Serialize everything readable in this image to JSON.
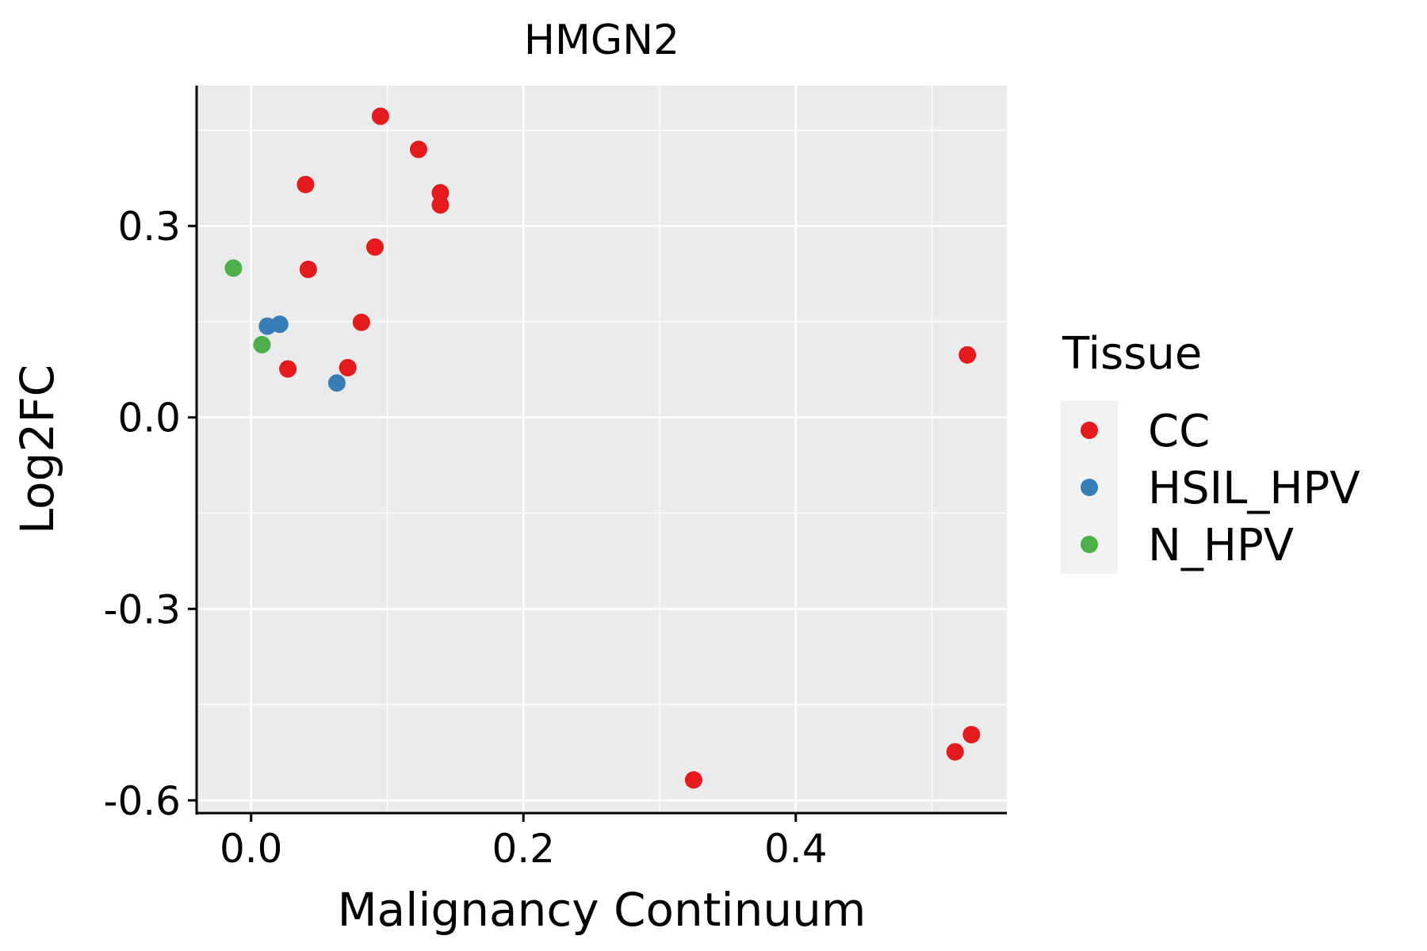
{
  "chart_data": {
    "type": "scatter",
    "title": "HMGN2",
    "xlabel": "Malignancy Continuum",
    "ylabel": "Log2FC",
    "xlim": [
      -0.04,
      0.555
    ],
    "ylim": [
      -0.62,
      0.52
    ],
    "x_ticks": [
      0.0,
      0.2,
      0.4
    ],
    "x_tick_labels": [
      "0.0",
      "0.2",
      "0.4"
    ],
    "x_minor": [
      -0.1,
      0.1,
      0.3,
      0.5
    ],
    "y_ticks": [
      -0.6,
      -0.3,
      0.0,
      0.3
    ],
    "y_tick_labels": [
      "-0.6",
      "-0.3",
      "0.0",
      "0.3"
    ],
    "y_minor": [
      -0.45,
      -0.15,
      0.15,
      0.45
    ],
    "grid": true,
    "panel_background": "#ebebeb",
    "legend": {
      "title": "Tissue",
      "position": "right",
      "entries": [
        {
          "name": "CC",
          "color": "#e41a1c"
        },
        {
          "name": "HSIL_HPV",
          "color": "#377eb8"
        },
        {
          "name": "N_HPV",
          "color": "#4daf4a"
        }
      ]
    },
    "series": [
      {
        "name": "CC",
        "color": "#e41a1c",
        "points": [
          {
            "x": 0.095,
            "y": 0.472
          },
          {
            "x": 0.123,
            "y": 0.42
          },
          {
            "x": 0.04,
            "y": 0.365
          },
          {
            "x": 0.139,
            "y": 0.352
          },
          {
            "x": 0.139,
            "y": 0.333
          },
          {
            "x": 0.091,
            "y": 0.267
          },
          {
            "x": 0.042,
            "y": 0.232
          },
          {
            "x": 0.081,
            "y": 0.149
          },
          {
            "x": 0.027,
            "y": 0.076
          },
          {
            "x": 0.071,
            "y": 0.078
          },
          {
            "x": 0.526,
            "y": 0.098
          },
          {
            "x": 0.529,
            "y": -0.497
          },
          {
            "x": 0.517,
            "y": -0.524
          },
          {
            "x": 0.325,
            "y": -0.568
          }
        ]
      },
      {
        "name": "HSIL_HPV",
        "color": "#377eb8",
        "points": [
          {
            "x": 0.012,
            "y": 0.143
          },
          {
            "x": 0.021,
            "y": 0.146
          },
          {
            "x": 0.063,
            "y": 0.054
          }
        ]
      },
      {
        "name": "N_HPV",
        "color": "#4daf4a",
        "points": [
          {
            "x": -0.013,
            "y": 0.234
          },
          {
            "x": 0.008,
            "y": 0.114
          }
        ]
      }
    ]
  }
}
